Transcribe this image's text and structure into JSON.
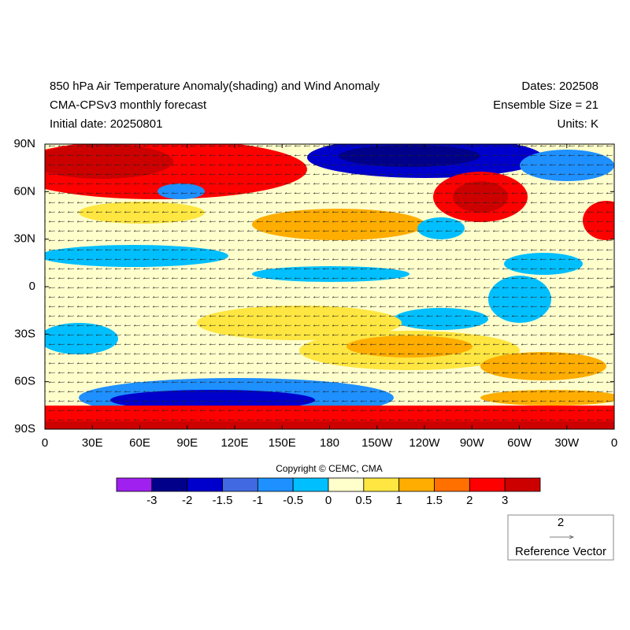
{
  "header": {
    "left": [
      "850 hPa Air Temperature Anomaly(shading) and Wind Anomaly",
      "CMA-CPSv3 monthly forecast",
      "Initial date: 20250801"
    ],
    "right": [
      "Dates: 202508",
      "Ensemble Size = 21",
      "Units: K"
    ]
  },
  "map": {
    "lon_labels": [
      "0",
      "30E",
      "60E",
      "90E",
      "120E",
      "150E",
      "180",
      "150W",
      "120W",
      "90W",
      "60W",
      "30W",
      "0"
    ],
    "lat_labels": [
      "90N",
      "60N",
      "30N",
      "0",
      "30S",
      "60S",
      "90S"
    ]
  },
  "copyright": "Copyright © CEMC, CMA",
  "colorbar": {
    "colors": [
      "#a020f0",
      "#00008b",
      "#0000cd",
      "#4169e1",
      "#1e90ff",
      "#00bfff",
      "#ffffcc",
      "#ffe640",
      "#ffad00",
      "#ff7000",
      "#ff0000",
      "#cd0000"
    ],
    "labels": [
      -3,
      -2,
      -1.5,
      -1,
      -0.5,
      0,
      0.5,
      1,
      1.5,
      2,
      3
    ]
  },
  "reference_vector": {
    "value": "2",
    "label": "Reference Vector"
  }
}
